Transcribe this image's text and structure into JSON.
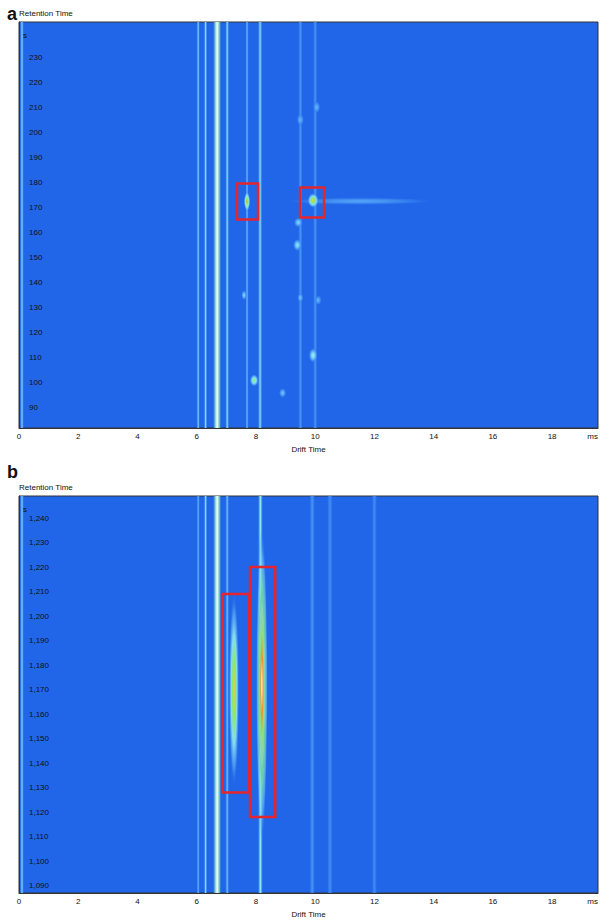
{
  "chart_data": [
    {
      "type": "heatmap",
      "panel": "a",
      "x_label": "Drift Time",
      "x_unit": "ms",
      "y_label": "Retention Time",
      "y_unit": "s",
      "xlim": [
        0,
        19.55
      ],
      "xticks": [
        0,
        2,
        4,
        6,
        8,
        10,
        12,
        14,
        16,
        18
      ],
      "ylim": [
        82,
        244
      ],
      "yticks": [
        90,
        100,
        110,
        120,
        130,
        140,
        150,
        160,
        170,
        180,
        190,
        200,
        210,
        220,
        230
      ],
      "grid": false,
      "lines": [
        {
          "x": 0.1,
          "drift_width": 0.14,
          "intensity": 0.45
        },
        {
          "x": 6.05,
          "drift_width": 0.12,
          "intensity": 0.45
        },
        {
          "x": 6.3,
          "drift_width": 0.12,
          "intensity": 0.5
        },
        {
          "x": 6.69,
          "drift_width": 0.3,
          "intensity": 1
        },
        {
          "x": 7.03,
          "drift_width": 0.14,
          "intensity": 0.5
        },
        {
          "x": 7.7,
          "drift_width": 0.12,
          "intensity": 0.38
        },
        {
          "x": 8.14,
          "drift_width": 0.16,
          "intensity": 0.5
        },
        {
          "x": 9.5,
          "drift_width": 0.16,
          "intensity": 0.25
        },
        {
          "x": 10.0,
          "drift_width": 0.16,
          "intensity": 0.25
        }
      ],
      "spots": [
        {
          "x": 11.5,
          "y": 172.5,
          "drift_width": 5,
          "retention_width": 3,
          "intensity": 0.3
        },
        {
          "x": 7.7,
          "y": 172.4,
          "drift_width": 0.22,
          "retention_width": 8,
          "intensity": 0.85
        },
        {
          "x": 9.93,
          "y": 172.8,
          "drift_width": 0.38,
          "retention_width": 6,
          "intensity": 0.82
        },
        {
          "x": 7.94,
          "y": 101,
          "drift_width": 0.3,
          "retention_width": 5,
          "intensity": 0.7
        },
        {
          "x": 7.6,
          "y": 135,
          "drift_width": 0.2,
          "retention_width": 4,
          "intensity": 0.45
        },
        {
          "x": 8.9,
          "y": 96,
          "drift_width": 0.25,
          "retention_width": 4,
          "intensity": 0.4
        },
        {
          "x": 9.5,
          "y": 134,
          "drift_width": 0.2,
          "retention_width": 4,
          "intensity": 0.4
        },
        {
          "x": 9.93,
          "y": 111,
          "drift_width": 0.3,
          "retention_width": 6,
          "intensity": 0.55
        },
        {
          "x": 9.4,
          "y": 155,
          "drift_width": 0.3,
          "retention_width": 5,
          "intensity": 0.5
        },
        {
          "x": 9.43,
          "y": 164,
          "drift_width": 0.3,
          "retention_width": 4,
          "intensity": 0.45
        },
        {
          "x": 10.1,
          "y": 133,
          "drift_width": 0.25,
          "retention_width": 4,
          "intensity": 0.35
        },
        {
          "x": 9.5,
          "y": 205,
          "drift_width": 0.25,
          "retention_width": 5,
          "intensity": 0.35
        },
        {
          "x": 10.05,
          "y": 210,
          "drift_width": 0.25,
          "retention_width": 5,
          "intensity": 0.35
        }
      ],
      "boxes": [
        {
          "x": [
            7.36,
            8.07
          ],
          "y": [
            165.2,
            179.6
          ]
        },
        {
          "x": [
            9.49,
            10.3
          ],
          "y": [
            166,
            178
          ]
        }
      ]
    },
    {
      "type": "heatmap",
      "panel": "b",
      "x_label": "Drift Time",
      "x_unit": "ms",
      "y_label": "Retention Time",
      "y_unit": "s",
      "xlim": [
        0,
        19.55
      ],
      "xticks": [
        0,
        2,
        4,
        6,
        8,
        10,
        12,
        14,
        16,
        18
      ],
      "ylim": [
        1087,
        1249
      ],
      "yticks": [
        1090,
        1100,
        1110,
        1120,
        1130,
        1140,
        1150,
        1160,
        1170,
        1180,
        1190,
        1200,
        1210,
        1220,
        1230,
        1240
      ],
      "grid": false,
      "lines": [
        {
          "x": 0.1,
          "drift_width": 0.14,
          "intensity": 0.45
        },
        {
          "x": 6.05,
          "drift_width": 0.12,
          "intensity": 0.35
        },
        {
          "x": 6.3,
          "drift_width": 0.12,
          "intensity": 0.5
        },
        {
          "x": 6.69,
          "drift_width": 0.3,
          "intensity": 1
        },
        {
          "x": 7.03,
          "drift_width": 0.14,
          "intensity": 0.4
        },
        {
          "x": 8.15,
          "drift_width": 0.18,
          "intensity": 0.55
        },
        {
          "x": 9.9,
          "drift_width": 0.2,
          "intensity": 0.25
        },
        {
          "x": 10.5,
          "drift_width": 0.2,
          "intensity": 0.22
        },
        {
          "x": 12,
          "drift_width": 0.2,
          "intensity": 0.2
        }
      ],
      "spots": [
        {
          "x": 7.26,
          "y": 1170,
          "drift_width": 0.35,
          "retention_width": 80,
          "intensity": 0.82
        },
        {
          "x": 8.2,
          "y": 1172,
          "drift_width": 0.4,
          "retention_width": 130,
          "intensity": 1
        },
        {
          "x": 8.2,
          "y": 1172,
          "drift_width": 0.25,
          "retention_width": 80,
          "intensity": 1
        }
      ],
      "boxes": [
        {
          "x": [
            6.86,
            7.74
          ],
          "y": [
            1128,
            1209
          ]
        },
        {
          "x": [
            7.8,
            8.65
          ],
          "y": [
            1118,
            1220
          ]
        }
      ]
    }
  ]
}
